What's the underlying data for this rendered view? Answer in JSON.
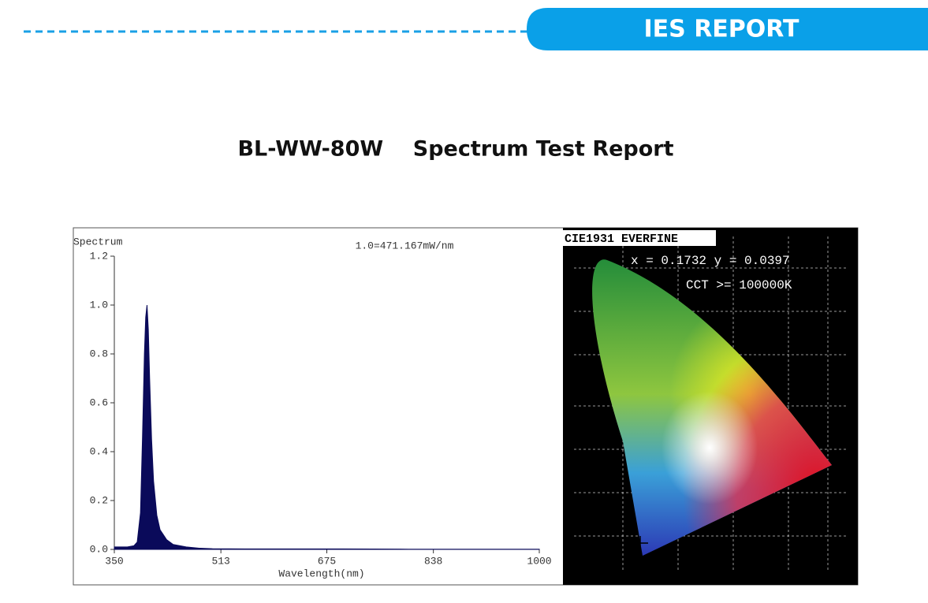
{
  "header": {
    "title": "IES REPORT"
  },
  "report_title": "BL-WW-80W    Spectrum Test Report",
  "chart_data": {
    "type": "area",
    "y_label": "Spectrum",
    "x_label": "Wavelength(nm)",
    "annotation": "1.0=471.167mW/nm",
    "x": [
      350,
      360,
      370,
      380,
      385,
      390,
      393,
      396,
      398,
      400,
      402,
      404,
      407,
      410,
      415,
      420,
      430,
      440,
      460,
      480,
      500,
      550,
      600,
      700,
      800,
      900,
      1000
    ],
    "values": [
      0.01,
      0.01,
      0.01,
      0.015,
      0.03,
      0.15,
      0.45,
      0.8,
      0.95,
      1.0,
      0.9,
      0.7,
      0.45,
      0.28,
      0.14,
      0.08,
      0.04,
      0.02,
      0.01,
      0.005,
      0.003,
      0.002,
      0.002,
      0.002,
      0.001,
      0.001,
      0.001
    ],
    "color": "#0a0a5a",
    "xlim": [
      350,
      1000
    ],
    "xticks": [
      350,
      513,
      675,
      838,
      1000
    ],
    "ylim": [
      0,
      1.2
    ],
    "yticks": [
      {
        "value": 0,
        "label": "0.0"
      },
      0.2,
      0.4,
      0.6,
      0.8,
      {
        "value": 1,
        "label": "1.0"
      },
      1.2
    ]
  },
  "cie": {
    "title": "CIE1931 EVERFINE",
    "coords": "x = 0.1732 y = 0.0397",
    "cct": "CCT >= 100000K"
  }
}
